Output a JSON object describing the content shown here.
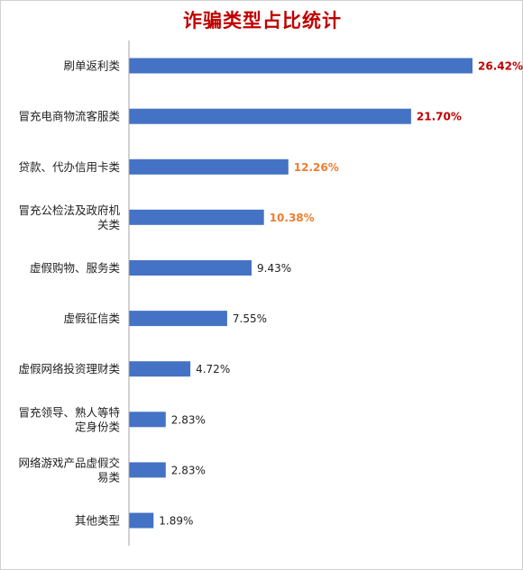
{
  "chart_data": {
    "type": "bar",
    "orientation": "horizontal",
    "title": "诈骗类型占比统计",
    "categories": [
      [
        "刷单返利类"
      ],
      [
        "冒充电商物流客服类"
      ],
      [
        "贷款、代办信用卡类"
      ],
      [
        "冒充公检法及政府机",
        "关类"
      ],
      [
        "虚假购物、服务类"
      ],
      [
        "虚假征信类"
      ],
      [
        "虚假网络投资理财类"
      ],
      [
        "冒充领导、熟人等特",
        "定身份类"
      ],
      [
        "网络游戏产品虚假交",
        "易类"
      ],
      [
        "其他类型"
      ]
    ],
    "values": [
      26.42,
      21.7,
      12.26,
      10.38,
      9.43,
      7.55,
      4.72,
      2.83,
      2.83,
      1.89
    ],
    "data_labels": [
      "26.42%",
      "21.70%",
      "12.26%",
      "10.38%",
      "9.43%",
      "7.55%",
      "4.72%",
      "2.83%",
      "2.83%",
      "1.89%"
    ],
    "label_colors": [
      "#c00000",
      "#c00000",
      "#ed7d31",
      "#ed7d31",
      "#222222",
      "#222222",
      "#222222",
      "#222222",
      "#222222",
      "#222222"
    ],
    "label_bold": [
      true,
      true,
      true,
      true,
      false,
      false,
      false,
      false,
      false,
      false
    ],
    "bar_color": "#4472c4",
    "axis_color": "#a6a6a6",
    "title_color": "#c00000",
    "xlim": [
      0,
      26.42
    ],
    "grid": false,
    "legend": "none"
  }
}
